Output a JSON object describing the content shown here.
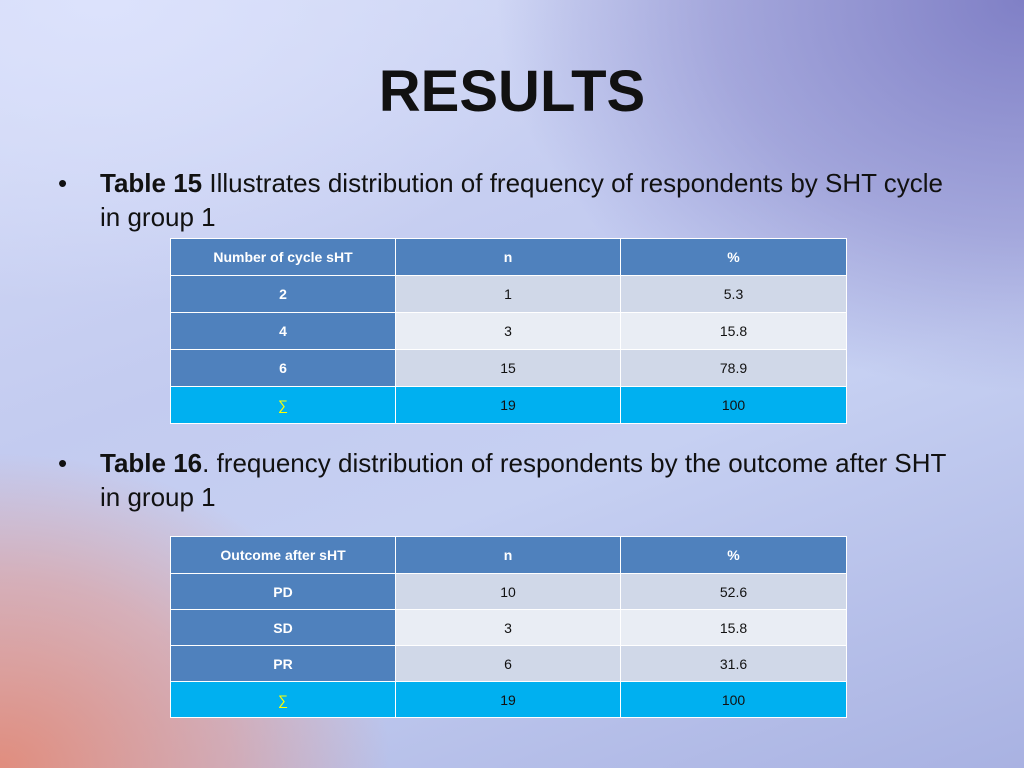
{
  "slide": {
    "title": "RESULTS"
  },
  "bullet1": {
    "marker": "•",
    "bold": "Table 15",
    "text": " Illustrates distribution of frequency of respondents by SHT cycle in group 1"
  },
  "table15": {
    "headers": [
      "Number of cycle  sHT",
      "n",
      "%"
    ],
    "rows": [
      [
        "2",
        "1",
        "5.3"
      ],
      [
        "4",
        "3",
        "15.8"
      ],
      [
        "6",
        "15",
        "78.9"
      ],
      [
        "∑",
        "19",
        "100"
      ]
    ]
  },
  "bullet2": {
    "marker": "•",
    "bold": "Table 16",
    "text": ". frequency distribution of respondents by the outcome after SHT in group 1"
  },
  "table16": {
    "headers": [
      "Outcome after sHT",
      "n",
      "%"
    ],
    "rows": [
      [
        "PD",
        "10",
        "52.6"
      ],
      [
        "SD",
        "3",
        "15.8"
      ],
      [
        "PR",
        "6",
        "31.6"
      ],
      [
        "∑",
        "19",
        "100"
      ]
    ]
  },
  "colors": {
    "header_blue": "#4f81bd",
    "row_light": "#d0d8e8",
    "row_lighter": "#e9edf4",
    "sum_row": "#00b0f0",
    "sum_symbol": "#ffff00"
  }
}
